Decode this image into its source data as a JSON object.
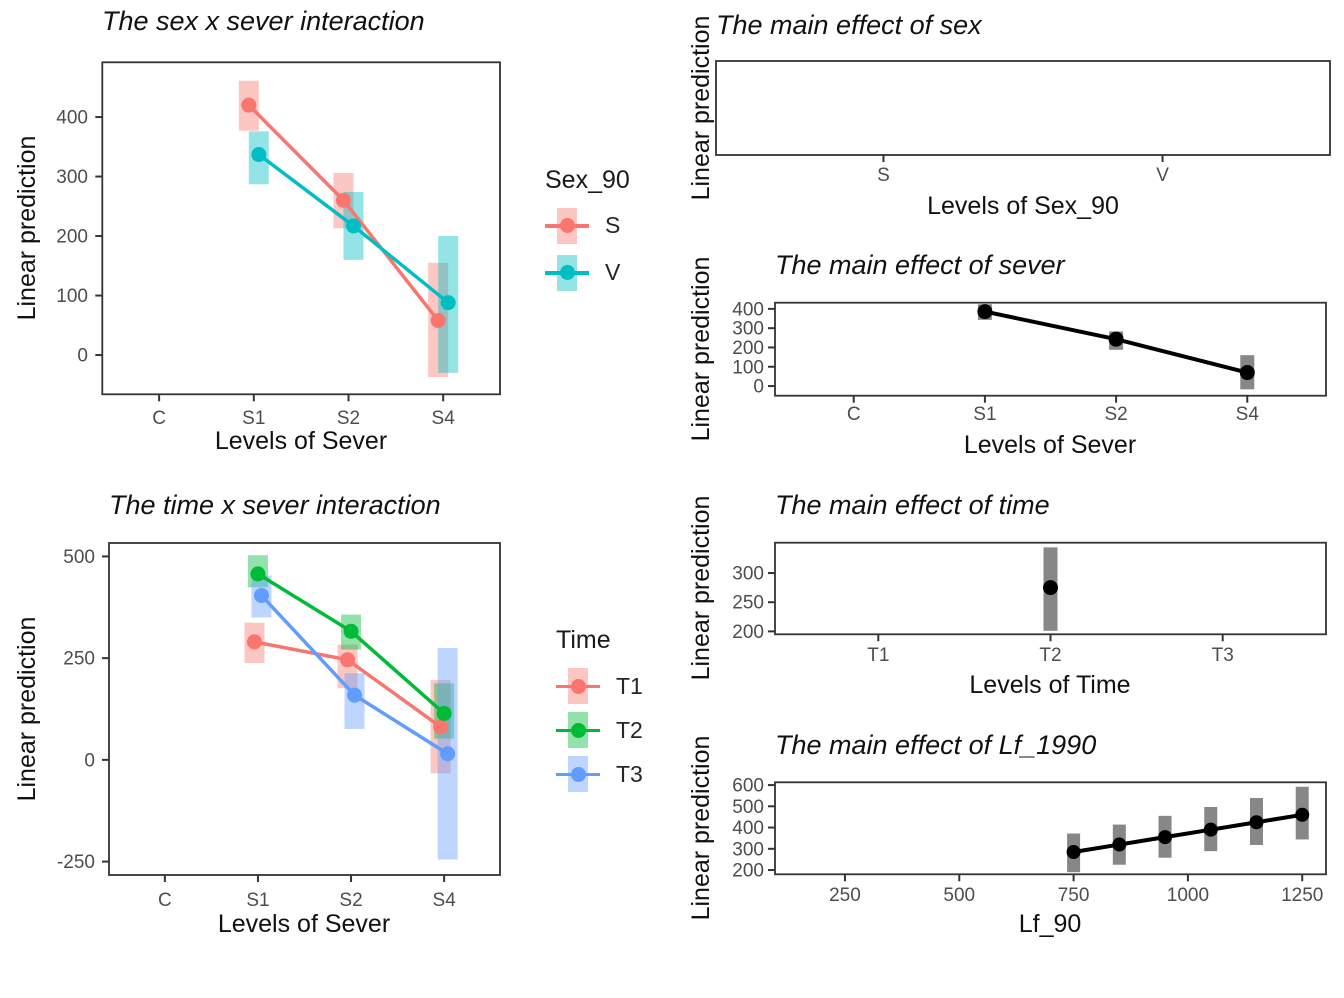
{
  "figure": {
    "background": "#ffffff",
    "panel_border_color": "#333333",
    "tick_label_color": "#4d4d4d",
    "ci_gray": "#878787"
  },
  "legends": [
    {
      "id": "sex",
      "title": "Sex_90",
      "items": [
        {
          "label": "S",
          "color": "#F8766D"
        },
        {
          "label": "V",
          "color": "#00BFC4"
        }
      ]
    },
    {
      "id": "time",
      "title": "Time",
      "items": [
        {
          "label": "T1",
          "color": "#F8766D"
        },
        {
          "label": "T2",
          "color": "#00BA38"
        },
        {
          "label": "T3",
          "color": "#619CFF"
        }
      ]
    }
  ],
  "chart_data": [
    {
      "id": "sex_x_sever",
      "type": "line",
      "title": "The sex x sever interaction",
      "xlabel": "Levels of Sever",
      "ylabel": "Linear prediction",
      "x_type": "category",
      "categories": [
        "C",
        "S1",
        "S2",
        "S4"
      ],
      "yticks": [
        0,
        100,
        200,
        300,
        400
      ],
      "ylim": [
        -66,
        492
      ],
      "grid": false,
      "legend": "Sex_90",
      "series": [
        {
          "name": "S",
          "color": "#F8766D",
          "points": [
            {
              "x": "S1",
              "y": 420,
              "lo": 377,
              "hi": 461
            },
            {
              "x": "S2",
              "y": 260,
              "lo": 213,
              "hi": 306
            },
            {
              "x": "S4",
              "y": 58,
              "lo": -37,
              "hi": 155
            }
          ]
        },
        {
          "name": "V",
          "color": "#00BFC4",
          "points": [
            {
              "x": "S1",
              "y": 337,
              "lo": 287,
              "hi": 376
            },
            {
              "x": "S2",
              "y": 217,
              "lo": 160,
              "hi": 274
            },
            {
              "x": "S4",
              "y": 88,
              "lo": -30,
              "hi": 200
            }
          ]
        }
      ]
    },
    {
      "id": "main_sex",
      "type": "line",
      "title": "The main effect of sex",
      "xlabel": "Levels of Sex_90",
      "ylabel": "Linear prediction",
      "x_type": "category",
      "categories": [
        "S",
        "V"
      ],
      "yticks": [],
      "ylim": [
        0,
        1
      ],
      "grid": false,
      "series": []
    },
    {
      "id": "main_sever",
      "type": "line",
      "title": "The main effect of sever",
      "xlabel": "Levels of Sever",
      "ylabel": "Linear prediction",
      "x_type": "category",
      "categories": [
        "C",
        "S1",
        "S2",
        "S4"
      ],
      "yticks": [
        0,
        100,
        200,
        300,
        400
      ],
      "ylim": [
        -50,
        432
      ],
      "grid": false,
      "series": [
        {
          "name": "sever",
          "color": "#000000",
          "ci_color": "#878787",
          "ci_opacity": 1,
          "points": [
            {
              "x": "S1",
              "y": 386,
              "lo": 343,
              "hi": 424
            },
            {
              "x": "S2",
              "y": 243,
              "lo": 188,
              "hi": 283
            },
            {
              "x": "S4",
              "y": 70,
              "lo": -17,
              "hi": 160
            }
          ]
        }
      ]
    },
    {
      "id": "time_x_sever",
      "type": "line",
      "title": "The time x sever interaction",
      "xlabel": "Levels of Sever",
      "ylabel": "Linear prediction",
      "x_type": "category",
      "categories": [
        "C",
        "S1",
        "S2",
        "S4"
      ],
      "yticks": [
        -250,
        0,
        250,
        500
      ],
      "ylim": [
        -283,
        533
      ],
      "grid": false,
      "legend": "Time",
      "series": [
        {
          "name": "T1",
          "color": "#F8766D",
          "points": [
            {
              "x": "S1",
              "y": 290,
              "lo": 238,
              "hi": 337
            },
            {
              "x": "S2",
              "y": 246,
              "lo": 176,
              "hi": 283
            },
            {
              "x": "S4",
              "y": 81,
              "lo": -33,
              "hi": 196
            }
          ]
        },
        {
          "name": "T2",
          "color": "#00BA38",
          "points": [
            {
              "x": "S1",
              "y": 457,
              "lo": 424,
              "hi": 503
            },
            {
              "x": "S2",
              "y": 316,
              "lo": 271,
              "hi": 357
            },
            {
              "x": "S4",
              "y": 114,
              "lo": 52,
              "hi": 188
            }
          ]
        },
        {
          "name": "T3",
          "color": "#619CFF",
          "points": [
            {
              "x": "S1",
              "y": 404,
              "lo": 350,
              "hi": 453
            },
            {
              "x": "S2",
              "y": 159,
              "lo": 76,
              "hi": 213
            },
            {
              "x": "S4",
              "y": 15,
              "lo": -245,
              "hi": 275
            }
          ]
        }
      ]
    },
    {
      "id": "main_time",
      "type": "line",
      "title": "The main effect of time",
      "xlabel": "Levels of Time",
      "ylabel": "Linear prediction",
      "x_type": "category",
      "categories": [
        "T1",
        "T2",
        "T3"
      ],
      "yticks": [
        200,
        250,
        300
      ],
      "ylim": [
        195,
        352
      ],
      "grid": false,
      "series": [
        {
          "name": "time",
          "color": "#000000",
          "ci_color": "#878787",
          "ci_opacity": 1,
          "points": [
            {
              "x": "T2",
              "y": 275,
              "lo": 201,
              "hi": 344
            }
          ]
        }
      ]
    },
    {
      "id": "main_lf",
      "type": "line",
      "title": "The main effect of Lf_1990",
      "xlabel": "Lf_90",
      "ylabel": "Linear prediction",
      "x_type": "numeric",
      "xlim": [
        97,
        1302
      ],
      "xticks": [
        250,
        500,
        750,
        1000,
        1250
      ],
      "yticks": [
        200,
        300,
        400,
        500,
        600
      ],
      "ylim": [
        180,
        613
      ],
      "grid": false,
      "series": [
        {
          "name": "Lf_90",
          "color": "#000000",
          "ci_color": "#878787",
          "ci_opacity": 1,
          "points": [
            {
              "x": 750,
              "y": 285,
              "lo": 190,
              "hi": 372
            },
            {
              "x": 850,
              "y": 320,
              "lo": 225,
              "hi": 414
            },
            {
              "x": 950,
              "y": 355,
              "lo": 258,
              "hi": 455
            },
            {
              "x": 1050,
              "y": 390,
              "lo": 289,
              "hi": 497
            },
            {
              "x": 1150,
              "y": 425,
              "lo": 318,
              "hi": 539
            },
            {
              "x": 1250,
              "y": 460,
              "lo": 344,
              "hi": 592
            }
          ]
        }
      ]
    }
  ]
}
